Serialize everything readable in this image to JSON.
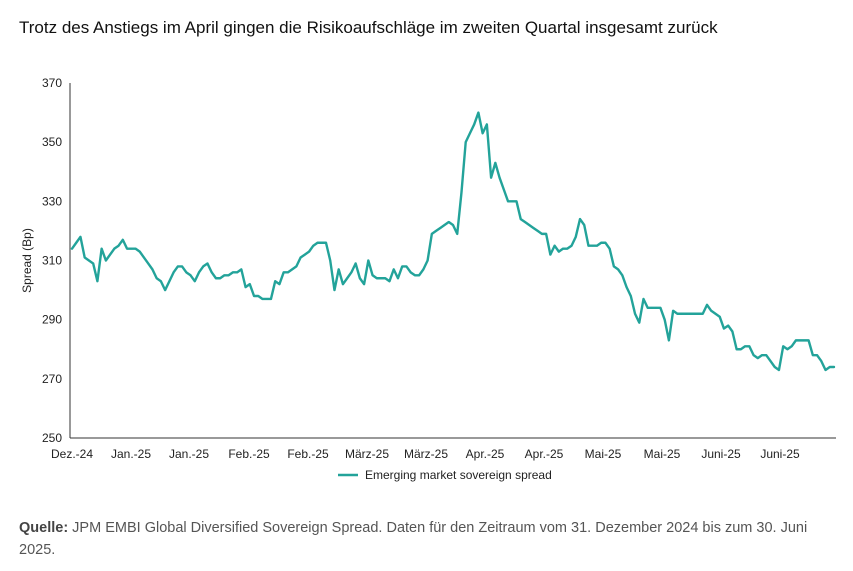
{
  "header": {
    "title": "Trotz des Anstiegs im April gingen die Risikoaufschläge im zweiten Quartal insgesamt zurück"
  },
  "source": {
    "label": "Quelle:",
    "text": " JPM EMBI Global Diversified Sovereign Spread. Daten für den Zeitraum vom 31. Dezember 2024 bis zum 30. Juni 2025."
  },
  "colors": {
    "series": "#23a39a",
    "axis": "#333333"
  },
  "chart_data": {
    "type": "line",
    "title": "Trotz des Anstiegs im April gingen die Risikoaufschläge im zweiten Quartal insgesamt zurück",
    "xlabel": "",
    "ylabel": "Spread (Bp)",
    "ylim": [
      250,
      370
    ],
    "yticks": [
      250,
      270,
      290,
      310,
      330,
      350,
      370
    ],
    "x_tick_labels": [
      "Dez.-24",
      "Jan.-25",
      "Jan.-25",
      "Feb.-25",
      "Feb.-25",
      "März-25",
      "März-25",
      "Apr.-25",
      "Apr.-25",
      "Mai-25",
      "Mai-25",
      "Juni-25",
      "Juni-25"
    ],
    "grid": false,
    "legend": "bottom-center",
    "series": [
      {
        "name": "Emerging market sovereign spread",
        "values": [
          314,
          316,
          318,
          311,
          310,
          309,
          303,
          314,
          310,
          312,
          314,
          315,
          317,
          314,
          314,
          314,
          313,
          311,
          309,
          307,
          304,
          303,
          300,
          303,
          306,
          308,
          308,
          306,
          305,
          303,
          306,
          308,
          309,
          306,
          304,
          304,
          305,
          305,
          306,
          306,
          307,
          301,
          302,
          298,
          298,
          297,
          297,
          297,
          303,
          302,
          306,
          306,
          307,
          308,
          311,
          312,
          313,
          315,
          316,
          316,
          316,
          310,
          300,
          307,
          302,
          304,
          306,
          309,
          304,
          302,
          310,
          305,
          304,
          304,
          304,
          303,
          307,
          304,
          308,
          308,
          306,
          305,
          305,
          307,
          310,
          319,
          320,
          321,
          322,
          323,
          322,
          319,
          333,
          350,
          353,
          356,
          360,
          353,
          356,
          338,
          343,
          338,
          334,
          330,
          330,
          330,
          324,
          323,
          322,
          321,
          320,
          319,
          319,
          312,
          315,
          313,
          314,
          314,
          315,
          318,
          324,
          322,
          315,
          315,
          315,
          316,
          316,
          314,
          308,
          307,
          305,
          301,
          298,
          292,
          289,
          297,
          294,
          294,
          294,
          294,
          290,
          283,
          293,
          292,
          292,
          292,
          292,
          292,
          292,
          292,
          295,
          293,
          292,
          291,
          287,
          288,
          286,
          280,
          280,
          281,
          281,
          278,
          277,
          278,
          278,
          276,
          274,
          273,
          281,
          280,
          281,
          283,
          283,
          283,
          283,
          278,
          278,
          276,
          273,
          274,
          274
        ]
      }
    ]
  }
}
